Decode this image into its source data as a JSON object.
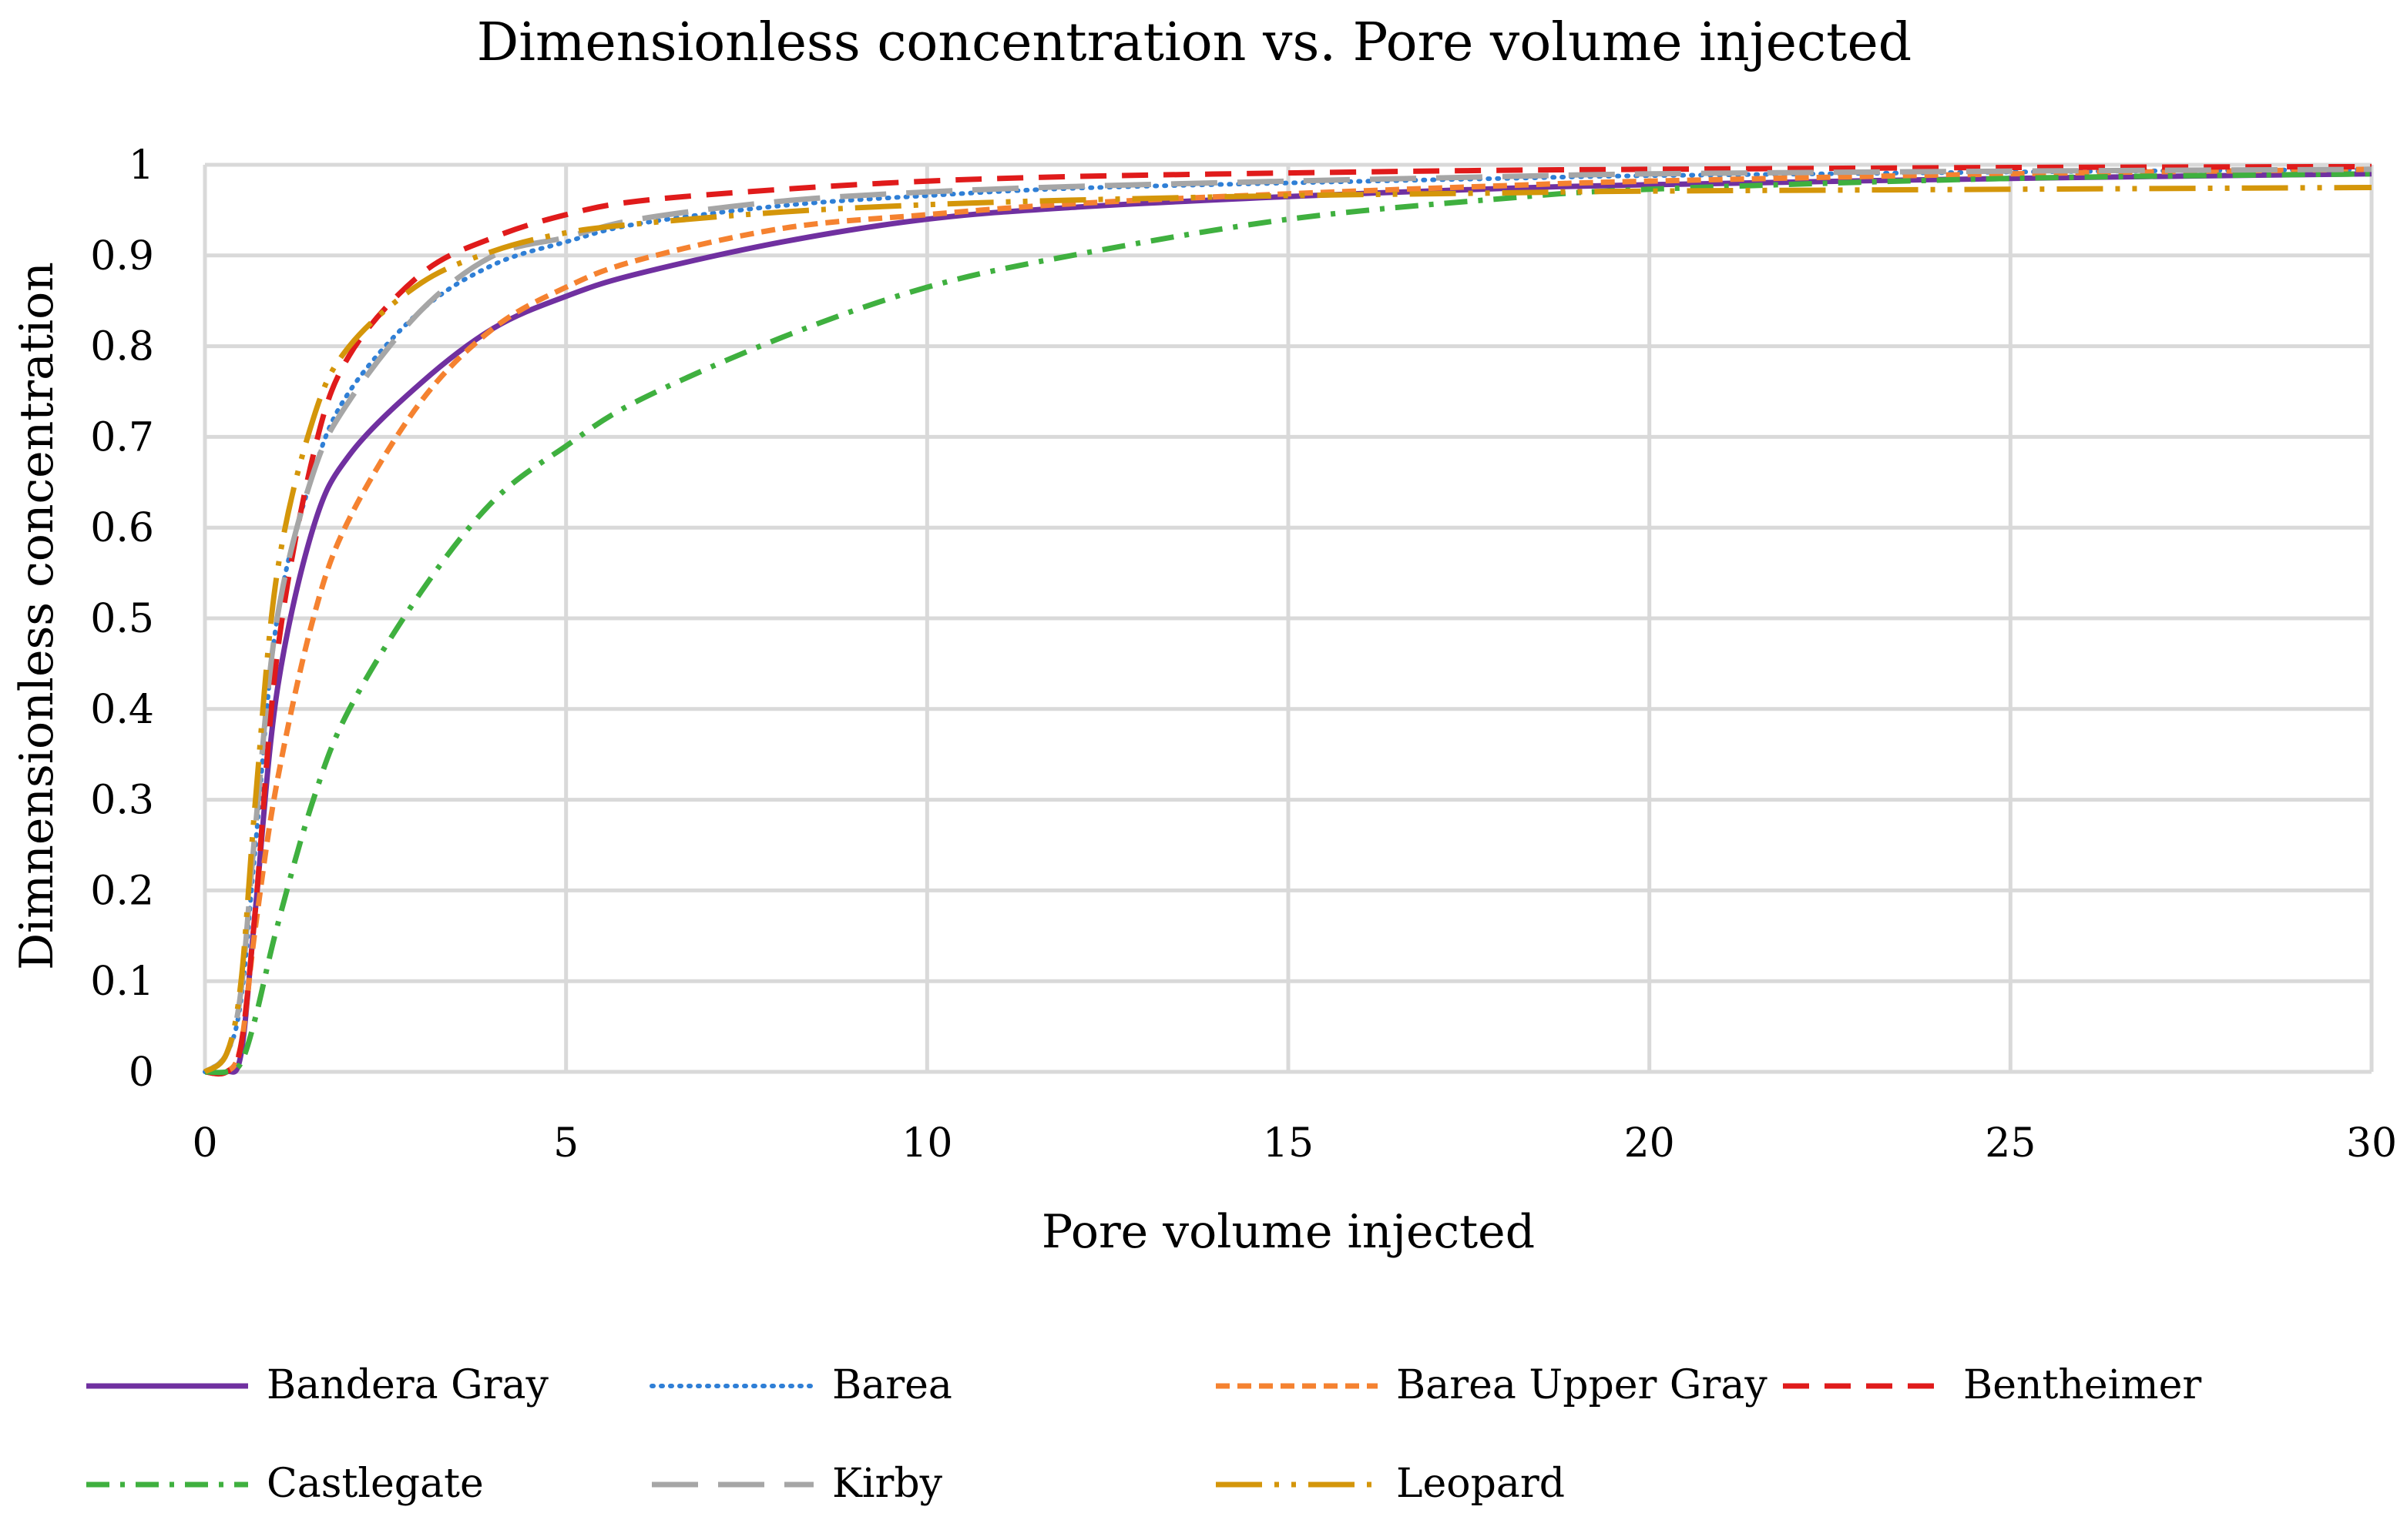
{
  "chart_data": {
    "type": "line",
    "title": "Dimensionless concentration vs. Pore volume injected",
    "xlabel": "Pore volume injected",
    "ylabel": "Dimnensionless concentration",
    "xlim": [
      0,
      30
    ],
    "ylim": [
      0,
      1
    ],
    "grid": true,
    "legend_position": "bottom",
    "x_ticks": [
      "0",
      "5",
      "10",
      "15",
      "20",
      "25",
      "30"
    ],
    "y_ticks": [
      "0",
      "0.1",
      "0.2",
      "0.3",
      "0.4",
      "0.5",
      "0.6",
      "0.7",
      "0.8",
      "0.9",
      "1"
    ],
    "x": [
      0,
      0.3,
      0.5,
      0.7,
      1,
      1.5,
      2,
      3,
      4,
      5,
      6,
      8,
      10,
      12,
      15,
      18,
      20,
      25,
      30
    ],
    "series": [
      {
        "name": "Bandera Gray",
        "color": "#7030a0",
        "style": "solid",
        "values": [
          0,
          0,
          0.02,
          0.18,
          0.42,
          0.6,
          0.68,
          0.76,
          0.82,
          0.855,
          0.88,
          0.915,
          0.94,
          0.953,
          0.965,
          0.974,
          0.978,
          0.985,
          0.99
        ]
      },
      {
        "name": "Barea",
        "color": "#2f7fd6",
        "style": "dotted",
        "values": [
          0,
          0.02,
          0.08,
          0.25,
          0.5,
          0.66,
          0.75,
          0.84,
          0.89,
          0.915,
          0.935,
          0.955,
          0.966,
          0.974,
          0.98,
          0.985,
          0.988,
          0.992,
          0.995
        ]
      },
      {
        "name": "Barea Upper Gray",
        "color": "#f58230",
        "style": "short-dash",
        "values": [
          0,
          0,
          0.03,
          0.16,
          0.32,
          0.5,
          0.61,
          0.74,
          0.82,
          0.865,
          0.895,
          0.93,
          0.945,
          0.957,
          0.968,
          0.977,
          0.982,
          0.99,
          0.995
        ]
      },
      {
        "name": "Bentheimer",
        "color": "#e01b1b",
        "style": "dash",
        "values": [
          0,
          0,
          0.03,
          0.18,
          0.46,
          0.68,
          0.79,
          0.88,
          0.92,
          0.945,
          0.96,
          0.973,
          0.982,
          0.987,
          0.991,
          0.994,
          0.995,
          0.997,
          0.998
        ]
      },
      {
        "name": "Castlegate",
        "color": "#3fb03f",
        "style": "dash-dot",
        "values": [
          0,
          0,
          0.01,
          0.06,
          0.16,
          0.3,
          0.4,
          0.53,
          0.63,
          0.69,
          0.74,
          0.81,
          0.865,
          0.9,
          0.94,
          0.963,
          0.973,
          0.985,
          0.99
        ]
      },
      {
        "name": "Kirby",
        "color": "#a6a6a6",
        "style": "long-dash",
        "values": [
          0,
          0.02,
          0.09,
          0.27,
          0.5,
          0.66,
          0.74,
          0.84,
          0.9,
          0.92,
          0.94,
          0.96,
          0.97,
          0.976,
          0.982,
          0.987,
          0.99,
          0.993,
          0.995
        ]
      },
      {
        "name": "Leopard",
        "color": "#d4960a",
        "style": "long-dash-dot-dot",
        "values": [
          0,
          0.02,
          0.1,
          0.3,
          0.55,
          0.72,
          0.8,
          0.87,
          0.905,
          0.925,
          0.935,
          0.948,
          0.956,
          0.961,
          0.966,
          0.969,
          0.971,
          0.973,
          0.975
        ]
      }
    ]
  }
}
